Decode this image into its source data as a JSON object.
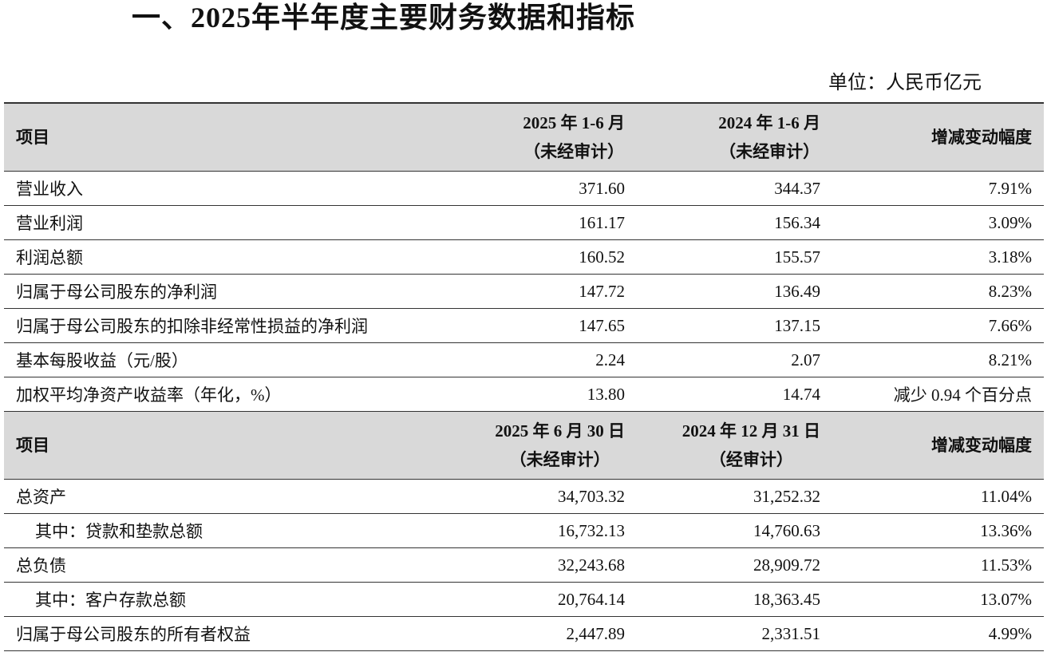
{
  "title": "一、2025年半年度主要财务数据和指标",
  "unit": "单位：人民币亿元",
  "sections": [
    {
      "header": {
        "item": "项目",
        "col1": [
          "2025 年 1-6 月",
          "（未经审计）"
        ],
        "col2": [
          "2024 年 1-6 月",
          "（未经审计）"
        ],
        "col3": "增减变动幅度"
      },
      "rows": [
        [
          "营业收入",
          "371.60",
          "344.37",
          "7.91%"
        ],
        [
          "营业利润",
          "161.17",
          "156.34",
          "3.09%"
        ],
        [
          "利润总额",
          "160.52",
          "155.57",
          "3.18%"
        ],
        [
          "归属于母公司股东的净利润",
          "147.72",
          "136.49",
          "8.23%"
        ],
        [
          "归属于母公司股东的扣除非经常性损益的净利润",
          "147.65",
          "137.15",
          "7.66%"
        ],
        [
          "基本每股收益（元/股）",
          "2.24",
          "2.07",
          "8.21%"
        ],
        [
          "加权平均净资产收益率（年化，%）",
          "13.80",
          "14.74",
          "减少 0.94 个百分点"
        ]
      ]
    },
    {
      "header": {
        "item": "项目",
        "col1": [
          "2025 年 6 月 30 日",
          "（未经审计）"
        ],
        "col2": [
          "2024 年 12 月 31 日",
          "（经审计）"
        ],
        "col3": "增减变动幅度"
      },
      "rows": [
        [
          "总资产",
          "34,703.32",
          "31,252.32",
          "11.04%"
        ],
        [
          "其中：贷款和垫款总额",
          "16,732.13",
          "14,760.63",
          "13.36%"
        ],
        [
          "总负债",
          "32,243.68",
          "28,909.72",
          "11.53%"
        ],
        [
          "其中：客户存款总额",
          "20,764.14",
          "18,363.45",
          "13.07%"
        ],
        [
          "归属于母公司股东的所有者权益",
          "2,447.89",
          "2,331.51",
          "4.99%"
        ]
      ]
    }
  ]
}
